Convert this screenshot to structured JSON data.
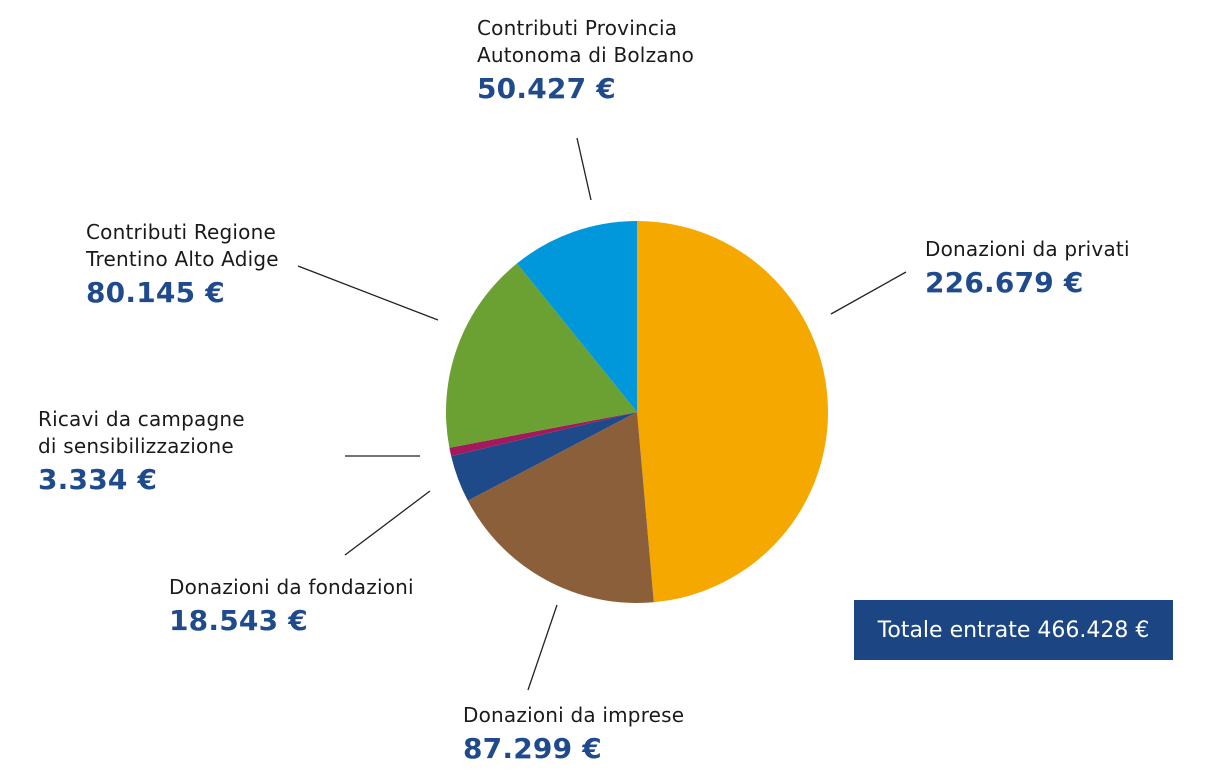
{
  "chart_data": {
    "type": "pie",
    "currency": "€",
    "slices": [
      {
        "label": "Donazioni da privati",
        "value": 226679,
        "display": "226.679 €",
        "color": "#f5a800"
      },
      {
        "label": "Donazioni da imprese",
        "value": 87299,
        "display": "87.299 €",
        "color": "#8c5f3b"
      },
      {
        "label": "Donazioni da fondazioni",
        "value": 18543,
        "display": "18.543 €",
        "color": "#1e4a8a"
      },
      {
        "label": "Ricavi da campagne\ndi sensibilizzazione",
        "value": 3334,
        "display": "3.334 €",
        "color": "#a3195b"
      },
      {
        "label": "Contributi Regione\nTrentino Alto Adige",
        "value": 80145,
        "display": "80.145 €",
        "color": "#6aa132"
      },
      {
        "label": "Contributi Provincia\nAutonoma di Bolzano",
        "value": 50427,
        "display": "50.427 €",
        "color": "#0097db"
      }
    ],
    "total_label": "Totale entrate 466.428 €",
    "total": 466428
  }
}
